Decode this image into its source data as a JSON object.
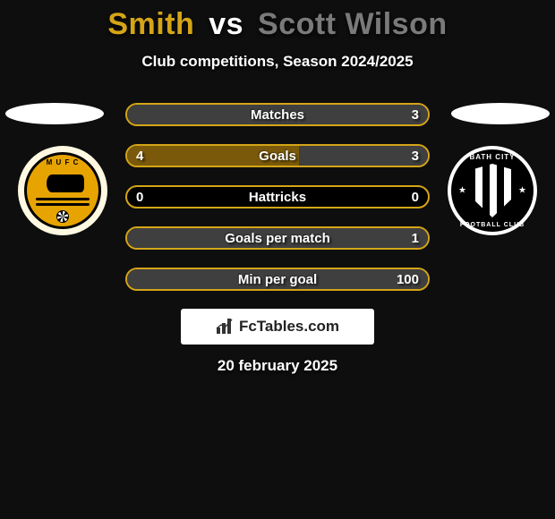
{
  "player1": {
    "name": "Smith",
    "color": "#d4a517"
  },
  "player2": {
    "name": "Scott Wilson",
    "color": "#7a7a7a"
  },
  "vs_label": "vs",
  "subtitle": "Club competitions, Season 2024/2025",
  "row_border_color": "#d4a517",
  "p1_fill_color": "#7a5a0a",
  "p2_fill_color": "#3f3f3f",
  "stats": [
    {
      "label": "Matches",
      "v1": "",
      "v2": "3",
      "fill_left_pct": 0,
      "fill_right_pct": 100
    },
    {
      "label": "Goals",
      "v1": "4",
      "v2": "3",
      "fill_left_pct": 57,
      "fill_right_pct": 43
    },
    {
      "label": "Hattricks",
      "v1": "0",
      "v2": "0",
      "fill_left_pct": 0,
      "fill_right_pct": 0
    },
    {
      "label": "Goals per match",
      "v1": "",
      "v2": "1",
      "fill_left_pct": 0,
      "fill_right_pct": 100
    },
    {
      "label": "Min per goal",
      "v1": "",
      "v2": "100",
      "fill_left_pct": 0,
      "fill_right_pct": 100
    }
  ],
  "watermark": "FcTables.com",
  "date": "20 february 2025",
  "badge_left_text": "M U F C",
  "badge_right_text_top": "BATH CITY",
  "badge_right_text_bot": "FOOTBALL CLUB"
}
